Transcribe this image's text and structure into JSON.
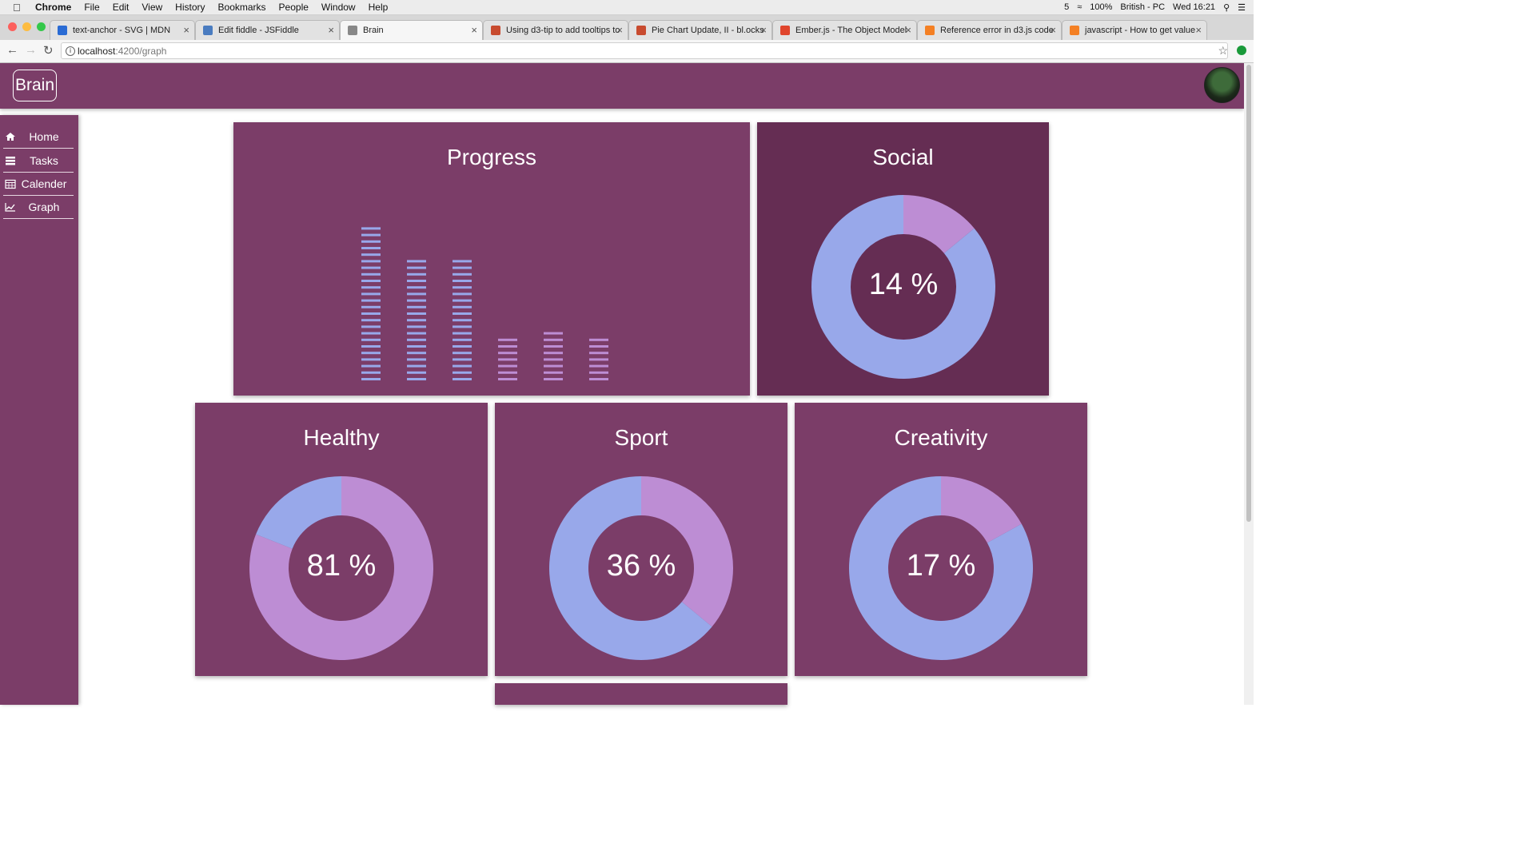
{
  "menubar": {
    "app": "Chrome",
    "items": [
      "File",
      "Edit",
      "View",
      "History",
      "Bookmarks",
      "People",
      "Window",
      "Help"
    ],
    "status": {
      "count": "5",
      "battery": "100%",
      "input": "British - PC",
      "clock": "Wed 16:21"
    }
  },
  "tabs": [
    {
      "label": "text-anchor - SVG | MDN",
      "color": "#2a6bd4"
    },
    {
      "label": "Edit fiddle - JSFiddle",
      "color": "#4a7cc0"
    },
    {
      "label": "Brain",
      "color": "#888888"
    },
    {
      "label": "Using d3-tip to add tooltips to",
      "color": "#c84b2f"
    },
    {
      "label": "Pie Chart Update, II - bl.ocks",
      "color": "#c84b2f"
    },
    {
      "label": "Ember.js - The Object Model",
      "color": "#e0452d"
    },
    {
      "label": "Reference error in d3.js code",
      "color": "#f48024"
    },
    {
      "label": "javascript - How to get value",
      "color": "#f48024"
    }
  ],
  "address": {
    "host": "localhost",
    "path": ":4200/graph"
  },
  "app": {
    "logo": "Brain"
  },
  "sidebar": {
    "items": [
      {
        "label": "Home",
        "icon": "home-icon"
      },
      {
        "label": "Tasks",
        "icon": "list-icon"
      },
      {
        "label": "Calender",
        "icon": "calendar-icon"
      },
      {
        "label": "Graph",
        "icon": "graph-icon"
      }
    ]
  },
  "colors": {
    "card": "#7b3d68",
    "card_dark": "#652d53",
    "blue": "#98a8ea",
    "purple": "#bd8dd4"
  },
  "cards": {
    "progress": {
      "title": "Progress"
    },
    "social": {
      "title": "Social",
      "percent_label": "14 %"
    },
    "healthy": {
      "title": "Healthy",
      "percent_label": "81 %"
    },
    "sport": {
      "title": "Sport",
      "percent_label": "36 %"
    },
    "creativity": {
      "title": "Creativity",
      "percent_label": "17 %"
    }
  },
  "chart_data": [
    {
      "type": "bar",
      "title": "Progress",
      "style": "segmented",
      "series": [
        {
          "values": [
            24,
            19,
            19,
            7,
            8,
            7
          ]
        }
      ],
      "colors": [
        "#98a8ea",
        "#98a8ea",
        "#98a8ea",
        "#bd8dd4",
        "#bd8dd4",
        "#bd8dd4"
      ]
    },
    {
      "type": "pie",
      "style": "donut",
      "title": "Social",
      "values": [
        14,
        86
      ],
      "colors": [
        "#bd8dd4",
        "#98a8ea"
      ]
    },
    {
      "type": "pie",
      "style": "donut",
      "title": "Healthy",
      "values": [
        81,
        19
      ],
      "colors": [
        "#bd8dd4",
        "#98a8ea"
      ]
    },
    {
      "type": "pie",
      "style": "donut",
      "title": "Sport",
      "values": [
        36,
        64
      ],
      "colors": [
        "#bd8dd4",
        "#98a8ea"
      ]
    },
    {
      "type": "pie",
      "style": "donut",
      "title": "Creativity",
      "values": [
        17,
        83
      ],
      "colors": [
        "#bd8dd4",
        "#98a8ea"
      ]
    }
  ]
}
